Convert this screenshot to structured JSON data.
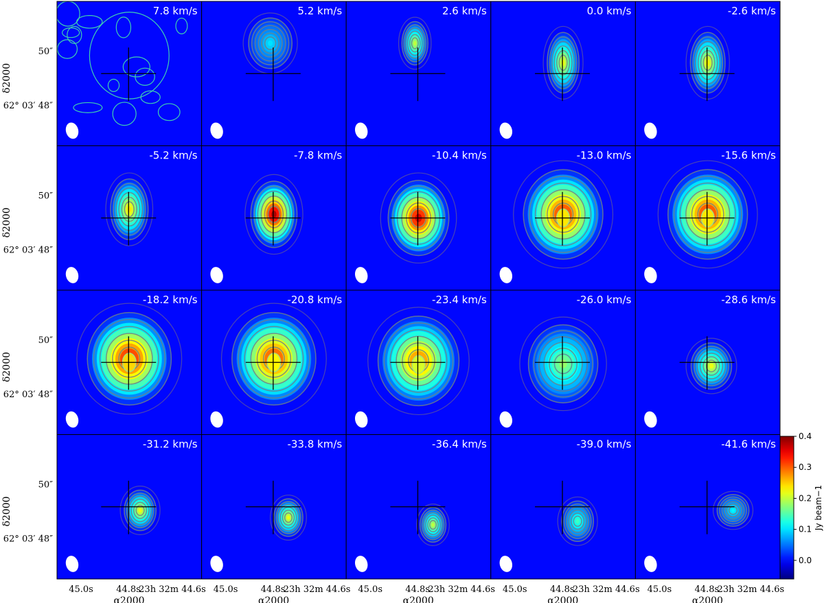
{
  "chart_data": {
    "type": "heatmap",
    "description_grid": "channel maps",
    "rows": 4,
    "cols": 5,
    "panels": [
      {
        "label": "7.8 km/s",
        "peak": 0.08,
        "cx": 0.0,
        "cy": 0.25,
        "sx": 0.55,
        "sy": 0.6,
        "shape": "noise"
      },
      {
        "label": "5.2 km/s",
        "peak": 0.1,
        "cx": -0.05,
        "cy": 0.42,
        "sx": 0.3,
        "sy": 0.35,
        "shape": "blob"
      },
      {
        "label": "2.6 km/s",
        "peak": 0.2,
        "cx": -0.05,
        "cy": 0.42,
        "sx": 0.18,
        "sy": 0.3,
        "shape": "blob"
      },
      {
        "label": "0.0 km/s",
        "peak": 0.22,
        "cx": 0.0,
        "cy": 0.15,
        "sx": 0.22,
        "sy": 0.42,
        "shape": "blob"
      },
      {
        "label": "-2.6 km/s",
        "peak": 0.23,
        "cx": 0.0,
        "cy": 0.15,
        "sx": 0.24,
        "sy": 0.42,
        "shape": "blob"
      },
      {
        "label": "-5.2 km/s",
        "peak": 0.24,
        "cx": 0.0,
        "cy": 0.12,
        "sx": 0.26,
        "sy": 0.42,
        "shape": "blob"
      },
      {
        "label": "-7.8 km/s",
        "peak": 0.38,
        "cx": 0.0,
        "cy": 0.05,
        "sx": 0.32,
        "sy": 0.46,
        "shape": "blob"
      },
      {
        "label": "-10.4 km/s",
        "peak": 0.36,
        "cx": 0.0,
        "cy": 0.0,
        "sx": 0.42,
        "sy": 0.52,
        "shape": "blob"
      },
      {
        "label": "-13.0 km/s",
        "peak": 0.34,
        "cx": 0.0,
        "cy": 0.05,
        "sx": 0.55,
        "sy": 0.62,
        "shape": "ring"
      },
      {
        "label": "-15.6 km/s",
        "peak": 0.34,
        "cx": 0.0,
        "cy": 0.05,
        "sx": 0.55,
        "sy": 0.62,
        "shape": "ring"
      },
      {
        "label": "-18.2 km/s",
        "peak": 0.35,
        "cx": 0.0,
        "cy": 0.05,
        "sx": 0.58,
        "sy": 0.64,
        "shape": "ring"
      },
      {
        "label": "-20.8 km/s",
        "peak": 0.33,
        "cx": 0.0,
        "cy": 0.05,
        "sx": 0.58,
        "sy": 0.64,
        "shape": "ring"
      },
      {
        "label": "-23.4 km/s",
        "peak": 0.3,
        "cx": 0.0,
        "cy": 0.02,
        "sx": 0.56,
        "sy": 0.62,
        "shape": "ring"
      },
      {
        "label": "-26.0 km/s",
        "peak": 0.18,
        "cx": 0.0,
        "cy": -0.02,
        "sx": 0.48,
        "sy": 0.54,
        "shape": "blob"
      },
      {
        "label": "-28.6 km/s",
        "peak": 0.22,
        "cx": 0.05,
        "cy": -0.05,
        "sx": 0.28,
        "sy": 0.32,
        "shape": "blob"
      },
      {
        "label": "-31.2 km/s",
        "peak": 0.22,
        "cx": 0.15,
        "cy": -0.05,
        "sx": 0.22,
        "sy": 0.28,
        "shape": "blob"
      },
      {
        "label": "-33.8 km/s",
        "peak": 0.22,
        "cx": 0.2,
        "cy": -0.15,
        "sx": 0.2,
        "sy": 0.26,
        "shape": "blob"
      },
      {
        "label": "-36.4 km/s",
        "peak": 0.2,
        "cx": 0.2,
        "cy": -0.25,
        "sx": 0.18,
        "sy": 0.24,
        "shape": "blob"
      },
      {
        "label": "-39.0 km/s",
        "peak": 0.14,
        "cx": 0.2,
        "cy": -0.2,
        "sx": 0.22,
        "sy": 0.28,
        "shape": "blob"
      },
      {
        "label": "-41.6 km/s",
        "peak": 0.11,
        "cx": 0.35,
        "cy": -0.05,
        "sx": 0.22,
        "sy": 0.22,
        "shape": "blob"
      }
    ],
    "y_ticks": [
      "50″",
      "62° 03′ 48″"
    ],
    "x_ticks": [
      "45.0s",
      "44.8s",
      "23h 32m 44.6s"
    ],
    "xlabel": "α2000",
    "ylabel": "δ2000",
    "colorbar": {
      "label": "Jy beam−1",
      "ticks": [
        0.4,
        0.3,
        0.2,
        0.1,
        0.0
      ],
      "tick_labels": [
        "0.4",
        "0.3",
        "0.2",
        "0.1",
        "0.0"
      ],
      "range": [
        -0.06,
        0.4
      ],
      "colormap": "jet"
    },
    "beam": "white ellipse, lower-left",
    "marker": "black cross at phase centre",
    "colors": {
      "background": "#0b3cf0",
      "contour": "#6e7f88",
      "cross": "#000000",
      "beam": "#ffffff"
    }
  }
}
